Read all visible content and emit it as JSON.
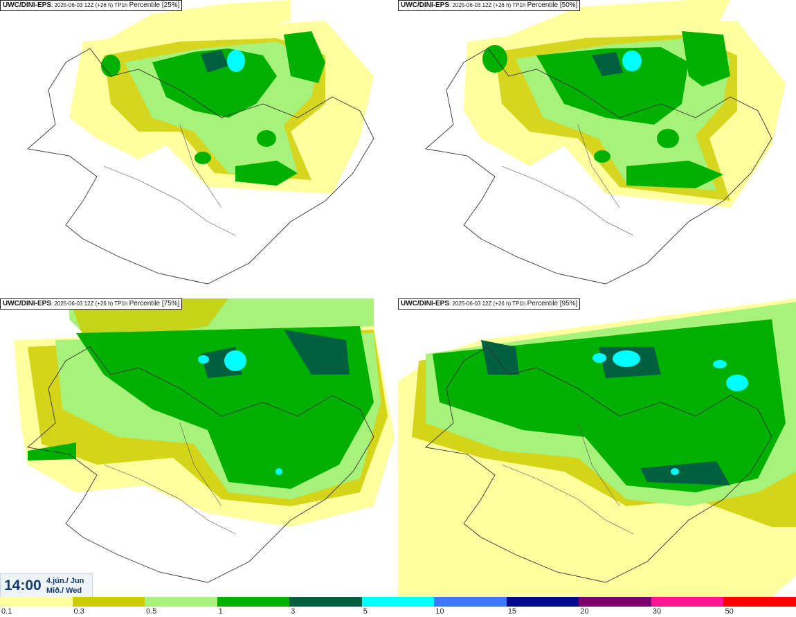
{
  "panels": [
    {
      "model": "UWC/DINI-EPS",
      "run": "2025-06-03 12Z (+26 h) TP1h",
      "percentile": "Percentile [25%]"
    },
    {
      "model": "UWC/DINI-EPS",
      "run": "2025-06-03 12Z (+26 h) TP1h",
      "percentile": "Percentile [50%]"
    },
    {
      "model": "UWC/DINI-EPS",
      "run": "2025-06-03 12Z (+26 h) TP1h",
      "percentile": "Percentile [75%]"
    },
    {
      "model": "UWC/DINI-EPS",
      "run": "2025-06-03 12Z (+26 h) TP1h",
      "percentile": "Percentile [95%]"
    }
  ],
  "valid_time": {
    "time": "14:00",
    "date_line1": "4.jún./ Jun",
    "date_line2": "Mið./ Wed"
  },
  "legend": {
    "ticks": [
      "0.1",
      "0.3",
      "0.5",
      "1",
      "3",
      "5",
      "10",
      "15",
      "20",
      "30",
      "50"
    ],
    "colors": [
      "#ffff9f",
      "#cccc00",
      "#a6f27a",
      "#00b000",
      "#006040",
      "#00ffff",
      "#3c78ff",
      "#000a8c",
      "#7a006e",
      "#ff1493",
      "#ff0000"
    ]
  }
}
